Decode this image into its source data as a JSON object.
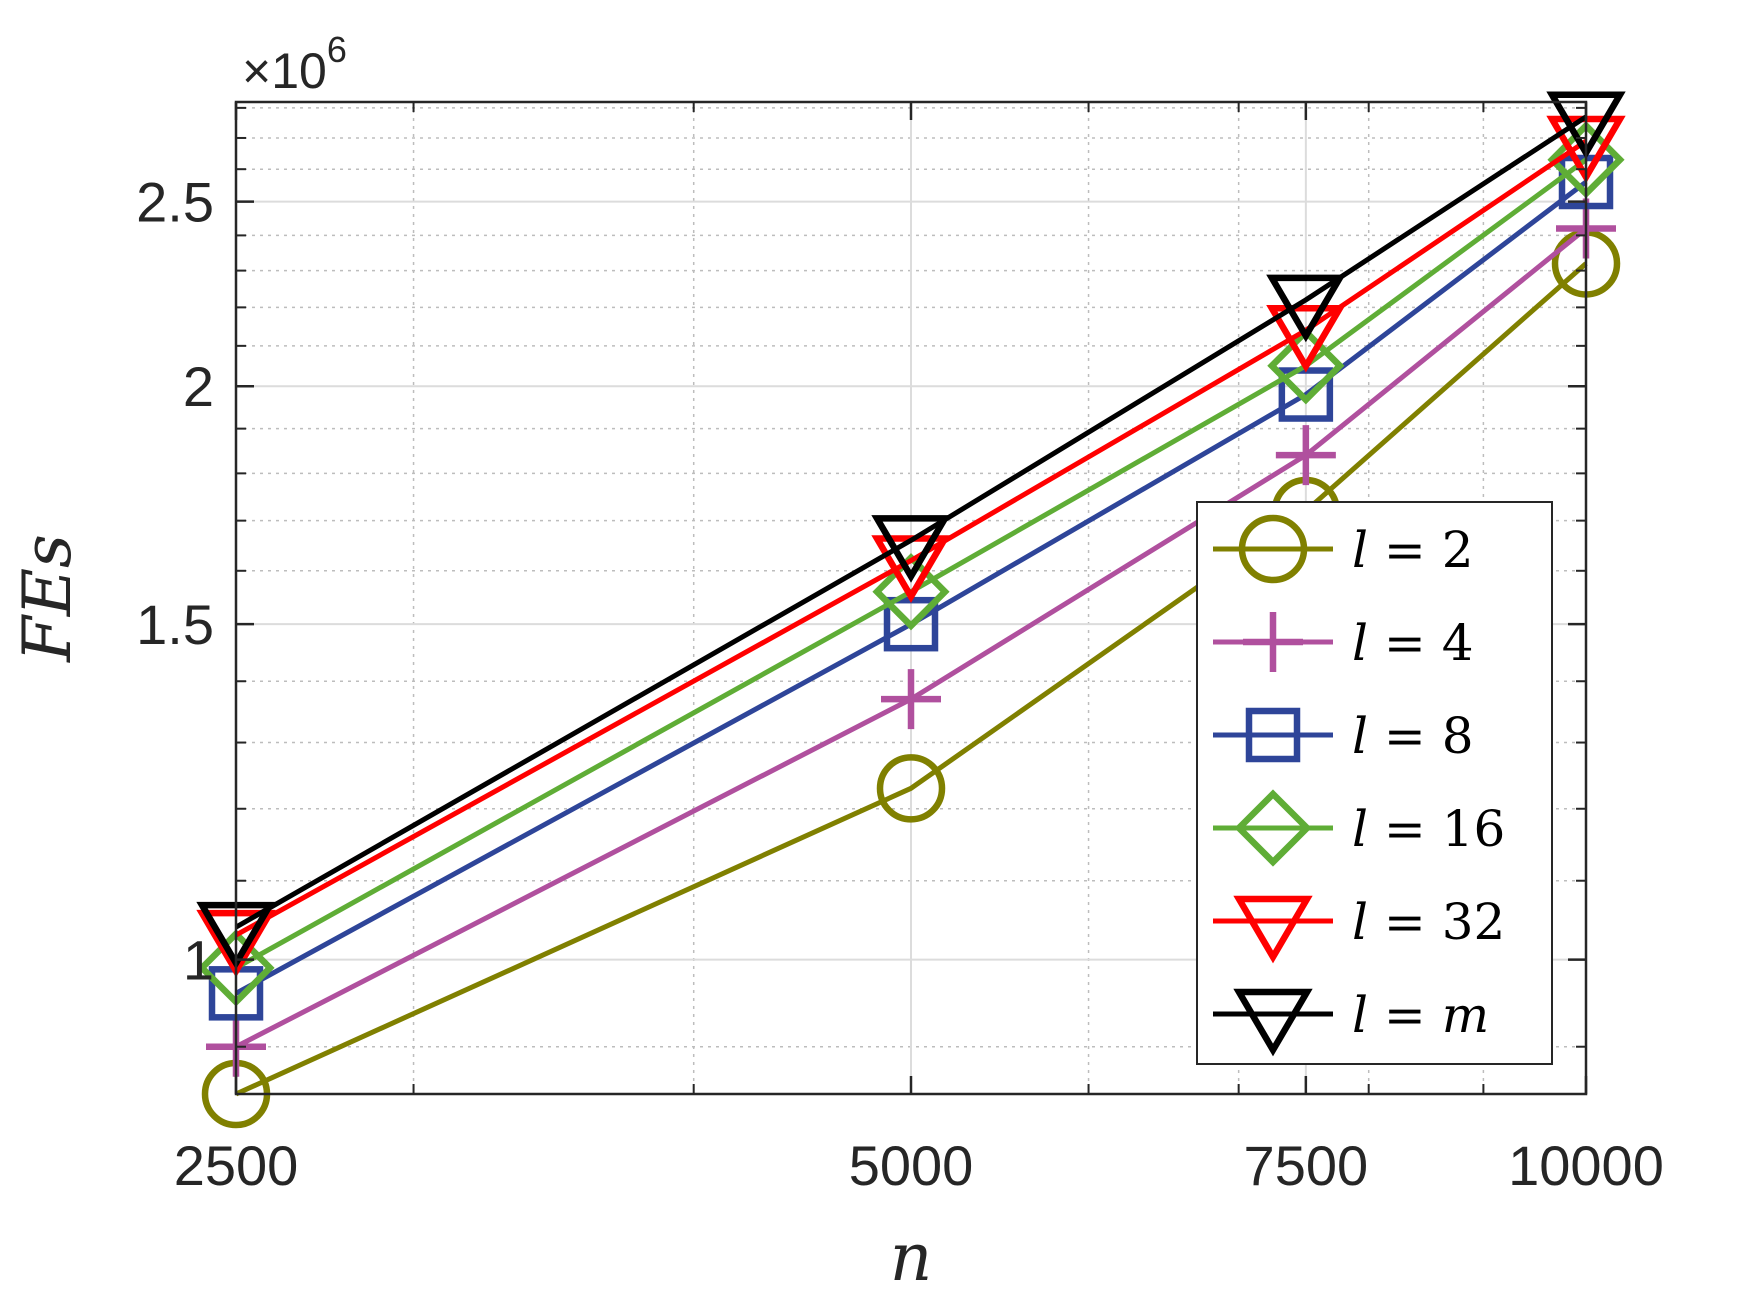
{
  "chart_data": {
    "type": "line",
    "xlabel": "n",
    "ylabel": "FEs",
    "y_multiplier": "×10",
    "y_multiplier_exp": "6",
    "x": [
      2500,
      5000,
      7500,
      10000
    ],
    "x_tick_labels": [
      "2500",
      "5000",
      "7500",
      "10000"
    ],
    "xlim": [
      2500,
      10000
    ],
    "x_scale": "log",
    "ylim": [
      0.85,
      2.82
    ],
    "y_scale": "log",
    "y_ticks": [
      1,
      1.5,
      2,
      2.5
    ],
    "y_tick_labels": [
      "1",
      "1.5",
      "2",
      "2.5"
    ],
    "grid": true,
    "minor_grid": true,
    "legend_position": "bottom-right",
    "series": [
      {
        "name": "l = 2",
        "var": "l",
        "rhs": "2",
        "color": "#808000",
        "marker": "circle",
        "values": [
          0.85,
          1.23,
          1.72,
          2.32
        ]
      },
      {
        "name": "l = 4",
        "var": "l",
        "rhs": "4",
        "color": "#B0509E",
        "marker": "plus",
        "values": [
          0.9,
          1.37,
          1.84,
          2.42
        ]
      },
      {
        "name": "l = 8",
        "var": "l",
        "rhs": "8",
        "color": "#2E4599",
        "marker": "square",
        "values": [
          0.96,
          1.5,
          1.98,
          2.56
        ]
      },
      {
        "name": "l = 16",
        "var": "l",
        "rhs": "16",
        "color": "#5FAD36",
        "marker": "diamond",
        "values": [
          0.99,
          1.56,
          2.05,
          2.63
        ]
      },
      {
        "name": "l = 32",
        "var": "l",
        "rhs": "32",
        "color": "#FF0000",
        "marker": "triangle-down",
        "values": [
          1.03,
          1.62,
          2.14,
          2.69
        ]
      },
      {
        "name": "l = m",
        "var": "l",
        "rhs": "m",
        "rhs_italic": true,
        "color": "#000000",
        "marker": "triangle-down",
        "values": [
          1.04,
          1.66,
          2.22,
          2.77
        ]
      }
    ]
  }
}
